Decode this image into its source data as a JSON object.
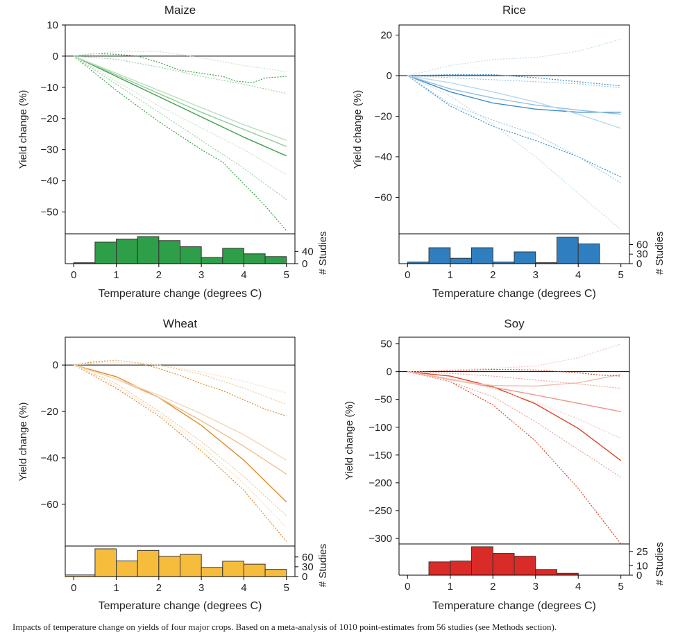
{
  "caption": "Impacts of temperature change on yields of four major crops. Based on a meta-analysis of 1010 point-estimates from 56 studies (see Methods section).",
  "chart_data": [
    {
      "type": "line",
      "title": "Maize",
      "xlabel": "Temperature change (degrees C)",
      "ylabel": "Yield change (%)",
      "hist_label": "# Studies",
      "xlim": [
        -0.2,
        5.2
      ],
      "ylim": [
        -57,
        10
      ],
      "xticks": [
        0,
        1,
        2,
        3,
        4,
        5
      ],
      "yticks": [
        10,
        0,
        -10,
        -20,
        -30,
        -40,
        -50
      ],
      "hist_ylim": [
        0,
        88
      ],
      "hist_ticks": [
        0,
        40
      ],
      "color": "#3aa14a",
      "hist_fill": "#2e9e48",
      "series": [
        {
          "style": "solid",
          "strength": 1.0,
          "x": [
            0,
            1,
            2,
            3,
            4,
            5
          ],
          "y": [
            0,
            -6.5,
            -13,
            -19.5,
            -26,
            -32
          ]
        },
        {
          "style": "solid",
          "strength": 0.55,
          "x": [
            0,
            1,
            2,
            3,
            4,
            5
          ],
          "y": [
            0,
            -6,
            -12,
            -18,
            -23.5,
            -29
          ]
        },
        {
          "style": "solid",
          "strength": 0.35,
          "x": [
            0,
            1,
            2,
            3,
            4,
            5
          ],
          "y": [
            0,
            -5.5,
            -11,
            -16.5,
            -22,
            -27
          ]
        },
        {
          "style": "dotted",
          "strength": 1.0,
          "x": [
            0,
            0.5,
            1,
            1.5,
            2,
            2.5,
            3,
            3.5,
            3.8,
            4.2,
            4.5,
            5
          ],
          "y": [
            0,
            0.8,
            0.6,
            0,
            -2,
            -4.5,
            -5.5,
            -6.5,
            -8,
            -8.5,
            -7,
            -6.5
          ]
        },
        {
          "style": "dotted",
          "strength": 1.0,
          "x": [
            0,
            1,
            2,
            3,
            3.5,
            4,
            4.5,
            5
          ],
          "y": [
            0,
            -11,
            -21,
            -30,
            -34,
            -41,
            -48,
            -56
          ]
        },
        {
          "style": "dotted",
          "strength": 0.5,
          "x": [
            0,
            1,
            2,
            3,
            4,
            5
          ],
          "y": [
            0,
            -1,
            -3.5,
            -6.5,
            -9,
            -12
          ]
        },
        {
          "style": "dotted",
          "strength": 0.5,
          "x": [
            0,
            1,
            2,
            3,
            4,
            5
          ],
          "y": [
            0,
            -9,
            -18,
            -27,
            -36,
            -46
          ]
        },
        {
          "style": "dotted",
          "strength": 0.3,
          "x": [
            0,
            1,
            2,
            3,
            4,
            5
          ],
          "y": [
            0,
            1.5,
            1.5,
            -0.5,
            -3,
            -5
          ]
        },
        {
          "style": "dotted",
          "strength": 0.3,
          "x": [
            0,
            1,
            2,
            3,
            4,
            5
          ],
          "y": [
            0,
            -8,
            -16,
            -23,
            -30,
            -38
          ]
        }
      ],
      "hist": {
        "edges": [
          0,
          0.5,
          1,
          1.5,
          2,
          2.5,
          3,
          3.5,
          4,
          4.5,
          5
        ],
        "counts": [
          3,
          70,
          80,
          88,
          75,
          55,
          20,
          50,
          32,
          23
        ]
      }
    },
    {
      "type": "line",
      "title": "Rice",
      "xlabel": "Temperature change (degrees C)",
      "ylabel": "Yield change (%)",
      "hist_label": "# Studies",
      "xlim": [
        -0.2,
        5.2
      ],
      "ylim": [
        -78,
        25
      ],
      "xticks": [
        0,
        1,
        2,
        3,
        4,
        5
      ],
      "yticks": [
        20,
        0,
        -20,
        -40,
        -60
      ],
      "hist_ylim": [
        0,
        85
      ],
      "hist_ticks": [
        0,
        30,
        60
      ],
      "color": "#3a8dc8",
      "hist_fill": "#2f7fc0",
      "series": [
        {
          "style": "solid",
          "strength": 1.0,
          "x": [
            0,
            1,
            2,
            3,
            4,
            5
          ],
          "y": [
            0,
            -8,
            -13.5,
            -16.5,
            -18,
            -18
          ]
        },
        {
          "style": "solid",
          "strength": 0.55,
          "x": [
            0,
            1,
            2,
            3,
            4,
            5
          ],
          "y": [
            0,
            -6.5,
            -11,
            -14.5,
            -17,
            -19
          ]
        },
        {
          "style": "solid",
          "strength": 0.35,
          "x": [
            0,
            1,
            2,
            3,
            4,
            5
          ],
          "y": [
            0,
            -3.5,
            -8,
            -13,
            -19,
            -26
          ]
        },
        {
          "style": "dotted",
          "strength": 1.0,
          "x": [
            0,
            1,
            2,
            3,
            4,
            5
          ],
          "y": [
            0,
            0.5,
            0.5,
            -1,
            -3,
            -5
          ]
        },
        {
          "style": "dotted",
          "strength": 1.0,
          "x": [
            0,
            1,
            2,
            3,
            4,
            5
          ],
          "y": [
            0,
            -15,
            -25,
            -32,
            -40,
            -50
          ]
        },
        {
          "style": "dotted",
          "strength": 0.5,
          "x": [
            0,
            1,
            2,
            3,
            4,
            5
          ],
          "y": [
            0,
            -1,
            -2,
            -3,
            -4,
            -6
          ]
        },
        {
          "style": "dotted",
          "strength": 0.5,
          "x": [
            0,
            1,
            2,
            3,
            4,
            5
          ],
          "y": [
            0,
            -14,
            -22,
            -29,
            -40,
            -53
          ]
        },
        {
          "style": "dotted",
          "strength": 0.3,
          "x": [
            0,
            1,
            2,
            3,
            4,
            5
          ],
          "y": [
            0,
            5,
            8,
            9,
            12,
            18
          ]
        },
        {
          "style": "dotted",
          "strength": 0.3,
          "x": [
            0,
            1,
            2,
            3,
            4,
            5
          ],
          "y": [
            0,
            -10,
            -24,
            -40,
            -58,
            -76
          ]
        }
      ],
      "hist": {
        "edges": [
          0,
          0.5,
          1,
          1.5,
          2,
          2.5,
          3,
          3.5,
          4,
          4.5,
          5
        ],
        "counts": [
          5,
          50,
          17,
          50,
          5,
          37,
          3,
          83,
          62,
          0
        ]
      }
    },
    {
      "type": "line",
      "title": "Wheat",
      "xlabel": "Temperature change (degrees C)",
      "ylabel": "Yield change (%)",
      "hist_label": "# Studies",
      "xlim": [
        -0.2,
        5.2
      ],
      "ylim": [
        -78,
        12
      ],
      "xticks": [
        0,
        1,
        2,
        3,
        4,
        5
      ],
      "yticks": [
        0,
        -20,
        -40,
        -60
      ],
      "hist_ylim": [
        0,
        85
      ],
      "hist_ticks": [
        0,
        30,
        60
      ],
      "color": "#e08a2a",
      "hist_fill": "#f6bc3c",
      "series": [
        {
          "style": "solid",
          "strength": 1.0,
          "x": [
            0,
            1,
            2,
            3,
            4,
            5
          ],
          "y": [
            0,
            -5,
            -14,
            -26,
            -41,
            -59
          ]
        },
        {
          "style": "solid",
          "strength": 0.55,
          "x": [
            0,
            1,
            2,
            3,
            4,
            5
          ],
          "y": [
            0,
            -6,
            -14,
            -24,
            -35,
            -47
          ]
        },
        {
          "style": "solid",
          "strength": 0.35,
          "x": [
            0,
            1,
            2,
            3,
            4,
            5
          ],
          "y": [
            0,
            -6,
            -13,
            -21,
            -30,
            -41
          ]
        },
        {
          "style": "dotted",
          "strength": 1.0,
          "x": [
            0,
            0.5,
            1,
            1.5,
            2,
            2.5,
            3,
            3.5,
            4,
            4.5,
            5
          ],
          "y": [
            0,
            1.5,
            2,
            1,
            -1.5,
            -4.5,
            -8,
            -11,
            -15,
            -19,
            -22
          ]
        },
        {
          "style": "dotted",
          "strength": 1.0,
          "x": [
            0,
            1,
            2,
            3,
            4,
            5
          ],
          "y": [
            0,
            -10,
            -22,
            -37,
            -54,
            -76
          ]
        },
        {
          "style": "dotted",
          "strength": 0.5,
          "x": [
            0,
            1,
            2,
            3,
            4,
            5
          ],
          "y": [
            0,
            2,
            0,
            -4,
            -10,
            -17
          ]
        },
        {
          "style": "dotted",
          "strength": 0.5,
          "x": [
            0,
            1,
            2,
            3,
            4,
            5
          ],
          "y": [
            0,
            -8,
            -20,
            -33,
            -48,
            -65
          ]
        },
        {
          "style": "dotted",
          "strength": 0.3,
          "x": [
            0,
            1,
            2,
            3,
            4,
            5
          ],
          "y": [
            0,
            1,
            0,
            -3,
            -7,
            -12
          ]
        },
        {
          "style": "dotted",
          "strength": 0.3,
          "x": [
            0,
            1,
            2,
            3,
            4,
            5
          ],
          "y": [
            0,
            -9,
            -21,
            -35,
            -51,
            -70
          ]
        }
      ],
      "hist": {
        "edges": [
          -0.2,
          0.5,
          1,
          1.5,
          2,
          2.5,
          3,
          3.5,
          4,
          4.5,
          5
        ],
        "counts": [
          5,
          85,
          48,
          80,
          62,
          68,
          28,
          47,
          38,
          22
        ]
      }
    },
    {
      "type": "line",
      "title": "Soy",
      "xlabel": "Temperature change (degrees C)",
      "ylabel": "Yield change (%)",
      "hist_label": "# Studies",
      "xlim": [
        -0.2,
        5.2
      ],
      "ylim": [
        -310,
        62
      ],
      "xticks": [
        0,
        1,
        2,
        3,
        4,
        5
      ],
      "yticks": [
        50,
        0,
        -50,
        -100,
        -150,
        -200,
        -250,
        -300
      ],
      "hist_ylim": [
        0,
        30
      ],
      "hist_ticks": [
        0,
        10,
        25
      ],
      "color": "#d64526",
      "hist_fill": "#d92c28",
      "series": [
        {
          "style": "solid",
          "strength": 1.0,
          "x": [
            0,
            1,
            2,
            3,
            4,
            5
          ],
          "y": [
            0,
            -8,
            -27,
            -58,
            -102,
            -160
          ]
        },
        {
          "style": "solid",
          "strength": 0.55,
          "x": [
            0,
            1,
            2,
            3,
            4,
            5
          ],
          "y": [
            0,
            -14,
            -28,
            -42,
            -57,
            -72
          ]
        },
        {
          "style": "solid",
          "strength": 0.35,
          "x": [
            0,
            1,
            2,
            3,
            4,
            5
          ],
          "y": [
            0,
            -15,
            -25,
            -26,
            -20,
            -5
          ]
        },
        {
          "style": "dotted",
          "strength": 1.0,
          "x": [
            0,
            1,
            2,
            3,
            4,
            4.5,
            5
          ],
          "y": [
            0,
            2,
            4,
            3,
            -2,
            -6,
            -8
          ]
        },
        {
          "style": "dotted",
          "strength": 1.0,
          "x": [
            0,
            1,
            2,
            3,
            4,
            4.5,
            5
          ],
          "y": [
            0,
            -18,
            -60,
            -125,
            -210,
            -260,
            -310
          ]
        },
        {
          "style": "dotted",
          "strength": 0.5,
          "x": [
            0,
            1,
            2,
            3,
            4,
            5
          ],
          "y": [
            0,
            -3,
            -8,
            -15,
            -22,
            -30
          ]
        },
        {
          "style": "dotted",
          "strength": 0.5,
          "x": [
            0,
            1,
            2,
            3,
            4,
            5
          ],
          "y": [
            0,
            -18,
            -45,
            -90,
            -140,
            -190
          ]
        },
        {
          "style": "dotted",
          "strength": 0.3,
          "x": [
            0,
            1,
            2,
            3,
            4,
            5
          ],
          "y": [
            0,
            3,
            6,
            10,
            25,
            50
          ]
        },
        {
          "style": "dotted",
          "strength": 0.3,
          "x": [
            0,
            1,
            2,
            3,
            4,
            5
          ],
          "y": [
            0,
            -12,
            -30,
            -55,
            -85,
            -120
          ]
        }
      ],
      "hist": {
        "edges": [
          0.5,
          1,
          1.5,
          2,
          2.5,
          3,
          3.5,
          4,
          4.5,
          5
        ],
        "counts": [
          14,
          15,
          30,
          23,
          20,
          6,
          2,
          0,
          0
        ]
      }
    }
  ]
}
